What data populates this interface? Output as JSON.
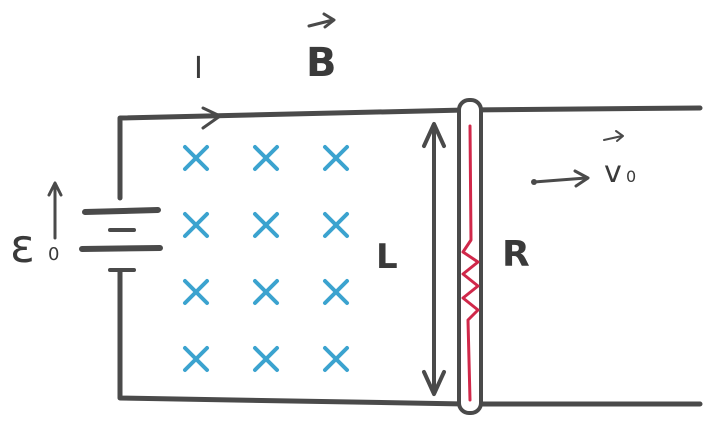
{
  "labels": {
    "current": "I",
    "field": "B",
    "emf": "ε",
    "emf_subscript": "0",
    "length": "L",
    "resistance": "R",
    "velocity": "v",
    "velocity_subscript": "0"
  },
  "field_direction": "into-page",
  "field_marker_rows": 4,
  "field_marker_cols": 3,
  "colors": {
    "wire": "#4a4a4a",
    "field_marker": "#3ba3cf",
    "resistor": "#d0284a"
  }
}
